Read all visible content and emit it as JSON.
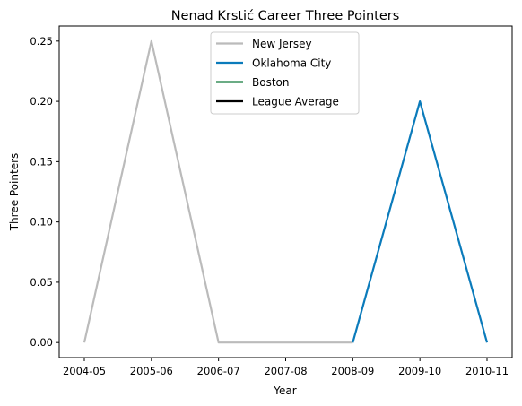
{
  "chart_data": {
    "type": "line",
    "title": "Nenad Krstić Career Three Pointers",
    "xlabel": "Year",
    "ylabel": "Three Pointers",
    "categories": [
      "2004-05",
      "2005-06",
      "2006-07",
      "2007-08",
      "2008-09",
      "2009-10",
      "2010-11"
    ],
    "ylim": [
      -0.0125,
      0.2625
    ],
    "yticks": [
      0.0,
      0.05,
      0.1,
      0.15,
      0.2,
      0.25
    ],
    "ytick_labels": [
      "0.00",
      "0.05",
      "0.10",
      "0.15",
      "0.20",
      "0.25"
    ],
    "grid": false,
    "legend_position": "top-center",
    "series": [
      {
        "name": "New Jersey",
        "color": "#bbbbbb",
        "points": [
          [
            0,
            0.0
          ],
          [
            1,
            0.25
          ],
          [
            2,
            0.0
          ],
          [
            3,
            0.0
          ],
          [
            4,
            0.0
          ]
        ]
      },
      {
        "name": "Oklahoma City",
        "color": "#0b7bbb",
        "points": [
          [
            4,
            0.0
          ],
          [
            5,
            0.2
          ],
          [
            6,
            0.0
          ]
        ]
      },
      {
        "name": "Boston",
        "color": "#137a3c",
        "points": []
      },
      {
        "name": "League Average",
        "color": "#000000",
        "points": []
      }
    ]
  }
}
